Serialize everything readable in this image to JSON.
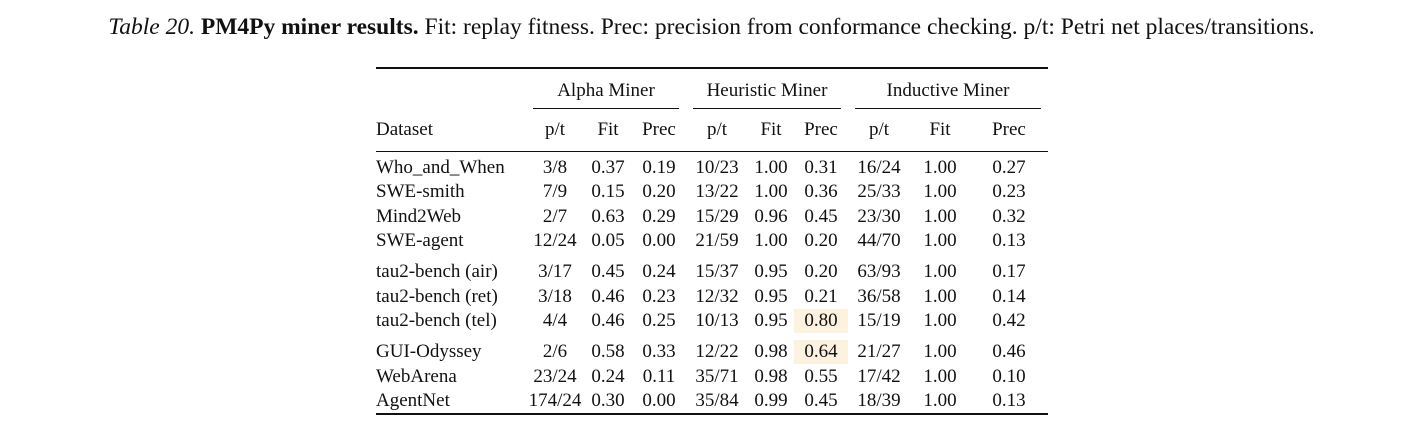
{
  "caption": {
    "number": "Table 20.",
    "title": "PM4Py miner results.",
    "text": "Fit: replay fitness. Prec: precision from conformance checking. p/t: Petri net places/transitions."
  },
  "table": {
    "groups": [
      "Alpha Miner",
      "Heuristic Miner",
      "Inductive Miner"
    ],
    "columns": [
      "Dataset",
      "p/t",
      "Fit",
      "Prec",
      "p/t",
      "Fit",
      "Prec",
      "p/t",
      "Fit",
      "Prec"
    ],
    "rows": [
      {
        "dataset": "Who_and_When",
        "cells": [
          "3/8",
          "0.37",
          "0.19",
          "10/23",
          "1.00",
          "0.31",
          "16/24",
          "1.00",
          "0.27"
        ]
      },
      {
        "dataset": "SWE-smith",
        "cells": [
          "7/9",
          "0.15",
          "0.20",
          "13/22",
          "1.00",
          "0.36",
          "25/33",
          "1.00",
          "0.23"
        ]
      },
      {
        "dataset": "Mind2Web",
        "cells": [
          "2/7",
          "0.63",
          "0.29",
          "15/29",
          "0.96",
          "0.45",
          "23/30",
          "1.00",
          "0.32"
        ]
      },
      {
        "dataset": "SWE-agent",
        "cells": [
          "12/24",
          "0.05",
          "0.00",
          "21/59",
          "1.00",
          "0.20",
          "44/70",
          "1.00",
          "0.13"
        ]
      },
      {
        "dataset": "tau2-bench (air)",
        "cells": [
          "3/17",
          "0.45",
          "0.24",
          "15/37",
          "0.95",
          "0.20",
          "63/93",
          "1.00",
          "0.17"
        ]
      },
      {
        "dataset": "tau2-bench (ret)",
        "cells": [
          "3/18",
          "0.46",
          "0.23",
          "12/32",
          "0.95",
          "0.21",
          "36/58",
          "1.00",
          "0.14"
        ]
      },
      {
        "dataset": "tau2-bench (tel)",
        "cells": [
          "4/4",
          "0.46",
          "0.25",
          "10/13",
          "0.95",
          "0.80",
          "15/19",
          "1.00",
          "0.42"
        ]
      },
      {
        "dataset": "GUI-Odyssey",
        "cells": [
          "2/6",
          "0.58",
          "0.33",
          "12/22",
          "0.98",
          "0.64",
          "21/27",
          "1.00",
          "0.46"
        ]
      },
      {
        "dataset": "WebArena",
        "cells": [
          "23/24",
          "0.24",
          "0.11",
          "35/71",
          "0.98",
          "0.55",
          "17/42",
          "1.00",
          "0.10"
        ]
      },
      {
        "dataset": "AgentNet",
        "cells": [
          "174/24",
          "0.30",
          "0.00",
          "35/84",
          "0.99",
          "0.45",
          "18/39",
          "1.00",
          "0.13"
        ]
      }
    ],
    "highlight_color": "#fdf1df"
  }
}
